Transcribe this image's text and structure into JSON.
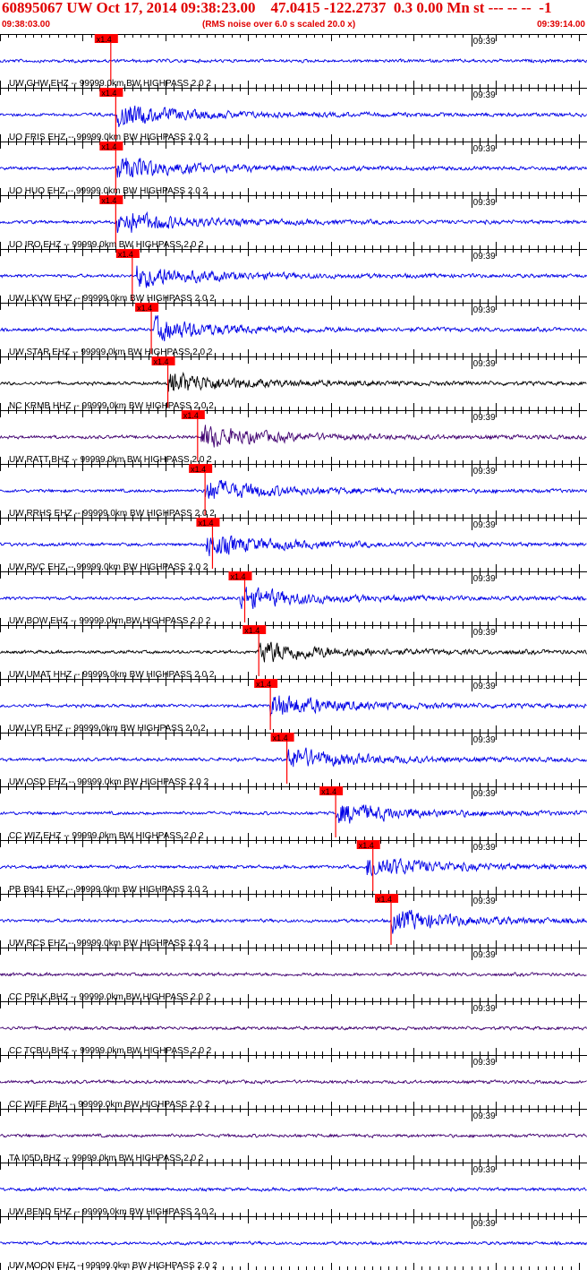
{
  "header": {
    "title": "60895067 UW Oct 17, 2014 09:38:23.00    47.0415 -122.2737  0.3 0.00 Mn st --- -- --  -1",
    "start_time": "09:38:03.00",
    "noise_note": "(RMS noise over 6.0 s scaled 20.0 x)",
    "end_time": "09:39:14.00"
  },
  "chart_data": {
    "type": "line",
    "title": "60895067 UW Oct 17, 2014 09:38:23.00    47.0415 -122.2737  0.3 0.00 Mn st --- -- --  -1",
    "x_start": "09:38:03.00",
    "x_end": "09:39:14.00",
    "x_range_seconds": [
      0,
      71
    ],
    "minute_mark": {
      "label": "09:39",
      "t": 57
    },
    "pick_label": "x1.4",
    "colors": {
      "blue": "#0000e6",
      "black": "#000000",
      "purple": "#400070",
      "red": "#ff0000",
      "frame": "#000000"
    },
    "traces": [
      {
        "label": "UW GHW EHZ -- 99999.0km BW  HIGHPASS  2.0  2",
        "color": "blue",
        "pick": 13.4,
        "onset": null
      },
      {
        "label": "UO FRIS EHZ -- 99999.0km BW  HIGHPASS  2.0  2",
        "color": "blue",
        "pick": 14.0,
        "onset": 14.2
      },
      {
        "label": "UO HUO EHZ -- 99999.0km BW  HIGHPASS  2.0  2",
        "color": "blue",
        "pick": 14.0,
        "onset": 14.2
      },
      {
        "label": "UO IRO EHZ -- 99999.0km BW  HIGHPASS  2.0  2",
        "color": "blue",
        "pick": 14.0,
        "onset": 14.2
      },
      {
        "label": "UW LKVW EHZ -- 99999.0km BW  HIGHPASS  2.0  2",
        "color": "blue",
        "pick": 16.0,
        "onset": 16.5
      },
      {
        "label": "UW STAR EHZ -- 99999.0km BW  HIGHPASS  2.0  2",
        "color": "blue",
        "pick": 18.3,
        "onset": 18.6
      },
      {
        "label": "NC KRMB HHZ -- 99999.0km BW  HIGHPASS  2.0  2",
        "color": "black",
        "pick": 20.3,
        "onset": 20.3
      },
      {
        "label": "UW RATT BHZ -- 99999.0km BW  HIGHPASS  2.0  2",
        "color": "purple",
        "pick": 23.9,
        "onset": 24.3
      },
      {
        "label": "UW RRHS EHZ -- 99999.0km BW  HIGHPASS  2.0  2",
        "color": "blue",
        "pick": 24.8,
        "onset": 24.8
      },
      {
        "label": "UW RVC EHZ -- 99999.0km BW  HIGHPASS  2.0  2",
        "color": "blue",
        "pick": 25.7,
        "onset": 25.0
      },
      {
        "label": "UW BOW EHZ -- 99999.0km BW  HIGHPASS  2.0  2",
        "color": "blue",
        "pick": 29.6,
        "onset": 29.0
      },
      {
        "label": "UW UMAT HHZ -- 99999.0km BW  HIGHPASS  2.0  2",
        "color": "black",
        "pick": 31.3,
        "onset": 31.3
      },
      {
        "label": "UW LVP EHZ -- 99999.0km BW  HIGHPASS  2.0  2",
        "color": "blue",
        "pick": 32.7,
        "onset": 32.7
      },
      {
        "label": "UW OSD EHZ -- 99999.0km BW  HIGHPASS  2.0  2",
        "color": "blue",
        "pick": 34.7,
        "onset": 34.8
      },
      {
        "label": "CC WIZ EHZ -- 99999.0km BW  HIGHPASS  2.0  2",
        "color": "blue",
        "pick": 40.6,
        "onset": 40.6
      },
      {
        "label": "PB B941 EHZ -- 99999.0km BW  HIGHPASS  2.0  2",
        "color": "blue",
        "pick": 45.1,
        "onset": 44.4
      },
      {
        "label": "UW RCS EHZ -- 99999.0km BW  HIGHPASS  2.0  2",
        "color": "blue",
        "pick": 47.3,
        "onset": 47.3
      },
      {
        "label": "CC PRLK BHZ -- 99999.0km BW  HIGHPASS  2.0  2",
        "color": "purple",
        "pick": null,
        "onset": null
      },
      {
        "label": "CC TCBU BHZ -- 99999.0km BW  HIGHPASS  2.0  2",
        "color": "purple",
        "pick": null,
        "onset": null
      },
      {
        "label": "CC WIFE BHZ -- 99999.0km BW  HIGHPASS  2.0  2",
        "color": "purple",
        "pick": null,
        "onset": null
      },
      {
        "label": "TA I05D BHZ -- 99999.0km BW  HIGHPASS  2.0  2",
        "color": "purple",
        "pick": null,
        "onset": null
      },
      {
        "label": "UW BEND EHZ -- 99999.0km BW  HIGHPASS  2.0  2",
        "color": "blue",
        "pick": null,
        "onset": null
      },
      {
        "label": "UW MOON EHZ -- 99999.0km BW  HIGHPASS  2.0  2",
        "color": "blue",
        "pick": null,
        "onset": null
      }
    ]
  }
}
